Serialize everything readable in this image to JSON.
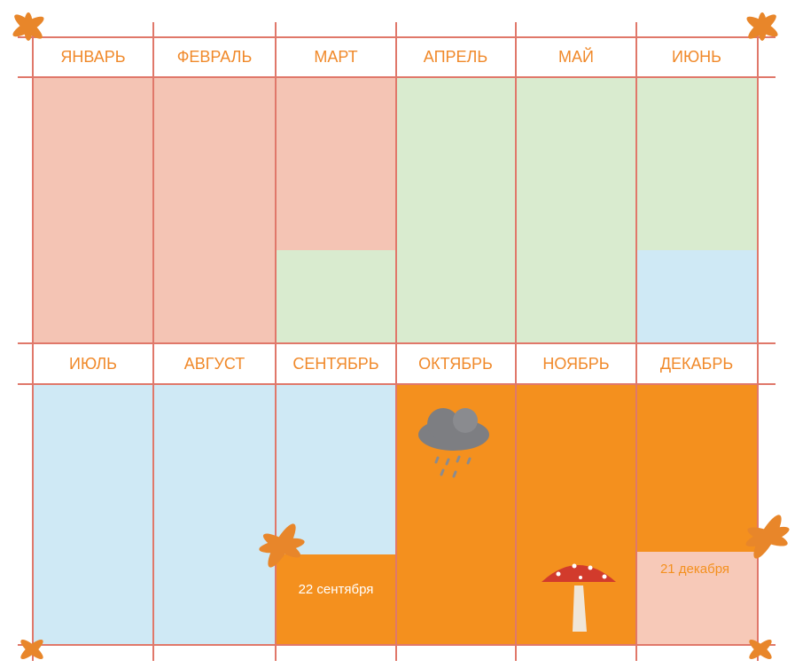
{
  "months": [
    "ЯНВАРЬ",
    "ФЕВРАЛЬ",
    "МАРТ",
    "АПРЕЛЬ",
    "МАЙ",
    "ИЮНЬ",
    "ИЮЛЬ",
    "АВГУСТ",
    "СЕНТЯБРЬ",
    "ОКТЯБРЬ",
    "НОЯБРЬ",
    "ДЕКАБРЬ"
  ],
  "annotations": [
    "22 сентября",
    "21 декабря"
  ]
}
